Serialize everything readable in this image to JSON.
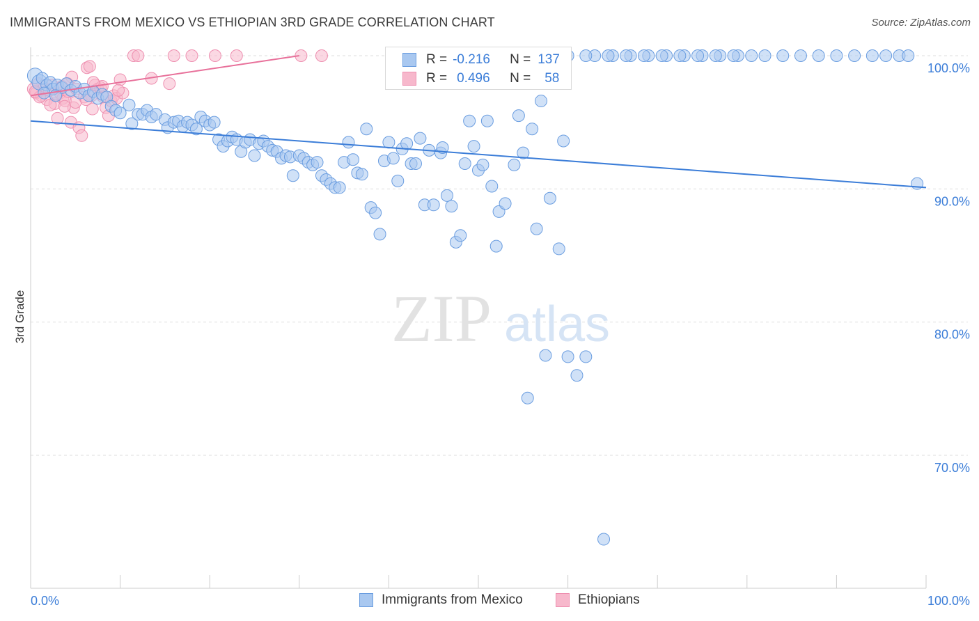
{
  "title": "IMMIGRANTS FROM MEXICO VS ETHIOPIAN 3RD GRADE CORRELATION CHART",
  "source": "Source: ZipAtlas.com",
  "watermark": {
    "zip": "ZIP",
    "atlas": "atlas"
  },
  "colors": {
    "blue": "#3b7dd8",
    "blue_fill": "#a9c8f0",
    "blue_stroke": "#6a9de0",
    "pink": "#e8709a",
    "pink_fill": "#f7b8cc",
    "pink_stroke": "#ee8fb0",
    "grid": "#dddddd",
    "axis_text": "#3b7dd8"
  },
  "legend_top": {
    "rows": [
      {
        "r_label": "R =",
        "r_value": "-0.216",
        "n_label": "N =",
        "n_value": "137",
        "color": "blue"
      },
      {
        "r_label": "R =",
        "r_value": "0.496",
        "n_label": "N =",
        "n_value": "58",
        "color": "pink"
      }
    ]
  },
  "legend_bottom": [
    {
      "label": "Immigrants from Mexico",
      "color": "blue"
    },
    {
      "label": "Ethiopians",
      "color": "pink"
    }
  ],
  "chart_data": {
    "type": "scatter",
    "title": "IMMIGRANTS FROM MEXICO VS ETHIOPIAN 3RD GRADE CORRELATION CHART",
    "xlabel": "",
    "ylabel": "3rd Grade",
    "xlim": [
      0,
      100
    ],
    "ylim": [
      62,
      100.5
    ],
    "x_tick_labels": [
      "0.0%",
      "100.0%"
    ],
    "y_tick_labels": [
      "100.0%",
      "90.0%",
      "80.0%",
      "70.0%"
    ],
    "y_ticks": [
      100,
      90,
      80,
      70
    ],
    "grid": true,
    "legend_position": "top-center",
    "series": [
      {
        "name": "Immigrants from Mexico",
        "color": "blue",
        "r": -0.216,
        "n": 137,
        "trend": {
          "x": [
            0,
            100
          ],
          "y": [
            95.1,
            90.1
          ]
        },
        "points": [
          [
            0.5,
            98.5
          ],
          [
            1.0,
            98.0
          ],
          [
            1.3,
            98.3
          ],
          [
            1.8,
            97.8
          ],
          [
            2.2,
            98.0
          ],
          [
            2.5,
            97.5
          ],
          [
            3.0,
            97.8
          ],
          [
            3.5,
            97.6
          ],
          [
            4.0,
            97.9
          ],
          [
            4.5,
            97.4
          ],
          [
            5.0,
            97.7
          ],
          [
            5.5,
            97.2
          ],
          [
            6.0,
            97.5
          ],
          [
            6.5,
            97.0
          ],
          [
            7.0,
            97.3
          ],
          [
            7.5,
            96.8
          ],
          [
            8.0,
            97.1
          ],
          [
            8.5,
            96.9
          ],
          [
            9.0,
            96.2
          ],
          [
            9.5,
            95.9
          ],
          [
            10.0,
            95.7
          ],
          [
            11.0,
            96.3
          ],
          [
            11.3,
            94.9
          ],
          [
            12.0,
            95.6
          ],
          [
            12.5,
            95.6
          ],
          [
            13.0,
            95.9
          ],
          [
            13.5,
            95.4
          ],
          [
            14.0,
            95.6
          ],
          [
            15.0,
            95.2
          ],
          [
            15.3,
            94.6
          ],
          [
            16.0,
            95.0
          ],
          [
            16.5,
            95.1
          ],
          [
            17.0,
            94.7
          ],
          [
            17.5,
            95.0
          ],
          [
            18.0,
            94.8
          ],
          [
            18.5,
            94.5
          ],
          [
            19.0,
            95.4
          ],
          [
            19.5,
            95.1
          ],
          [
            20.0,
            94.8
          ],
          [
            20.5,
            95.0
          ],
          [
            21.0,
            93.7
          ],
          [
            21.5,
            93.2
          ],
          [
            22.0,
            93.6
          ],
          [
            22.5,
            93.9
          ],
          [
            23.0,
            93.7
          ],
          [
            23.5,
            92.8
          ],
          [
            24.0,
            93.5
          ],
          [
            24.5,
            93.7
          ],
          [
            25.0,
            92.5
          ],
          [
            25.5,
            93.4
          ],
          [
            26.0,
            93.6
          ],
          [
            26.5,
            93.2
          ],
          [
            27.0,
            92.9
          ],
          [
            27.5,
            92.8
          ],
          [
            28.0,
            92.3
          ],
          [
            28.5,
            92.5
          ],
          [
            29.0,
            92.4
          ],
          [
            29.3,
            91.0
          ],
          [
            30.0,
            92.5
          ],
          [
            30.5,
            92.3
          ],
          [
            31.0,
            92.0
          ],
          [
            31.5,
            91.8
          ],
          [
            32.0,
            92.0
          ],
          [
            32.5,
            91.0
          ],
          [
            33.0,
            90.7
          ],
          [
            33.5,
            90.4
          ],
          [
            34.0,
            90.1
          ],
          [
            34.5,
            90.1
          ],
          [
            35.0,
            92.0
          ],
          [
            35.5,
            93.5
          ],
          [
            36.0,
            92.2
          ],
          [
            36.5,
            91.2
          ],
          [
            37.0,
            91.1
          ],
          [
            37.5,
            94.5
          ],
          [
            38.0,
            88.6
          ],
          [
            38.5,
            88.2
          ],
          [
            39.0,
            86.6
          ],
          [
            39.5,
            92.1
          ],
          [
            40.0,
            93.5
          ],
          [
            40.5,
            92.3
          ],
          [
            41.0,
            90.6
          ],
          [
            41.5,
            93.0
          ],
          [
            42.0,
            93.4
          ],
          [
            42.5,
            91.9
          ],
          [
            43.0,
            91.9
          ],
          [
            43.5,
            93.8
          ],
          [
            44.0,
            88.8
          ],
          [
            44.5,
            92.9
          ],
          [
            45.0,
            88.8
          ],
          [
            45.8,
            92.7
          ],
          [
            46.0,
            93.1
          ],
          [
            46.5,
            89.5
          ],
          [
            47.0,
            88.7
          ],
          [
            47.5,
            86.0
          ],
          [
            48.0,
            86.5
          ],
          [
            48.5,
            91.9
          ],
          [
            49.0,
            95.1
          ],
          [
            49.5,
            93.2
          ],
          [
            50.0,
            91.4
          ],
          [
            50.5,
            91.8
          ],
          [
            51.0,
            95.1
          ],
          [
            51.5,
            90.2
          ],
          [
            52.0,
            85.7
          ],
          [
            52.3,
            88.3
          ],
          [
            53.0,
            88.9
          ],
          [
            54.0,
            91.8
          ],
          [
            54.5,
            95.5
          ],
          [
            55.0,
            92.7
          ],
          [
            56.0,
            94.5
          ],
          [
            56.5,
            87.0
          ],
          [
            57.0,
            96.6
          ],
          [
            58.0,
            89.3
          ],
          [
            59.0,
            85.5
          ],
          [
            59.5,
            93.6
          ],
          [
            60.0,
            77.4
          ],
          [
            61.0,
            76.0
          ],
          [
            62.0,
            77.4
          ],
          [
            57.5,
            77.5
          ],
          [
            55.5,
            74.3
          ],
          [
            64.0,
            63.7
          ],
          [
            63.0,
            100.0
          ],
          [
            65.0,
            100.0
          ],
          [
            67.0,
            100.0
          ],
          [
            69.0,
            100.0
          ],
          [
            71.0,
            100.0
          ],
          [
            73.0,
            100.0
          ],
          [
            75.0,
            100.0
          ],
          [
            77.0,
            100.0
          ],
          [
            79.0,
            100.0
          ],
          [
            82.0,
            100.0
          ],
          [
            86.0,
            100.0
          ],
          [
            90.0,
            100.0
          ],
          [
            94.0,
            100.0
          ],
          [
            97.0,
            100.0
          ],
          [
            99.0,
            90.4
          ],
          [
            52.0,
            100.0
          ],
          [
            54.0,
            100.0
          ],
          [
            56.0,
            100.0
          ],
          [
            58.0,
            100.0
          ],
          [
            60.0,
            100.0
          ],
          [
            62.0,
            100.0
          ],
          [
            64.5,
            100.0
          ],
          [
            66.5,
            100.0
          ],
          [
            68.5,
            100.0
          ],
          [
            70.5,
            100.0
          ],
          [
            72.5,
            100.0
          ],
          [
            74.5,
            100.0
          ],
          [
            76.5,
            100.0
          ],
          [
            78.5,
            100.0
          ],
          [
            80.5,
            100.0
          ],
          [
            84.0,
            100.0
          ],
          [
            88.0,
            100.0
          ],
          [
            92.0,
            100.0
          ],
          [
            95.5,
            100.0
          ],
          [
            98.0,
            100.0
          ],
          [
            1.5,
            97.2
          ],
          [
            2.8,
            97.0
          ]
        ]
      },
      {
        "name": "Ethiopians",
        "color": "pink",
        "r": 0.496,
        "n": 58,
        "trend": {
          "x": [
            0,
            30
          ],
          "y": [
            97.0,
            100.0
          ]
        },
        "points": [
          [
            0.3,
            97.5
          ],
          [
            0.6,
            97.2
          ],
          [
            0.9,
            97.9
          ],
          [
            1.2,
            97.0
          ],
          [
            1.5,
            97.6
          ],
          [
            1.8,
            96.7
          ],
          [
            2.1,
            97.4
          ],
          [
            2.4,
            97.8
          ],
          [
            2.7,
            96.4
          ],
          [
            3.0,
            95.3
          ],
          [
            3.3,
            97.2
          ],
          [
            3.6,
            96.8
          ],
          [
            3.9,
            96.6
          ],
          [
            4.2,
            97.3
          ],
          [
            4.5,
            95.0
          ],
          [
            4.8,
            96.1
          ],
          [
            5.1,
            97.5
          ],
          [
            5.4,
            94.6
          ],
          [
            5.7,
            94.0
          ],
          [
            6.0,
            96.9
          ],
          [
            6.3,
            99.1
          ],
          [
            6.6,
            99.2
          ],
          [
            6.9,
            96.0
          ],
          [
            7.2,
            97.8
          ],
          [
            7.5,
            97.5
          ],
          [
            7.8,
            97.6
          ],
          [
            8.1,
            96.9
          ],
          [
            8.4,
            96.1
          ],
          [
            8.7,
            95.5
          ],
          [
            9.0,
            96.6
          ],
          [
            9.3,
            97.0
          ],
          [
            9.6,
            96.8
          ],
          [
            10.0,
            98.2
          ],
          [
            10.3,
            97.2
          ],
          [
            11.5,
            100.0
          ],
          [
            12.0,
            100.0
          ],
          [
            16.0,
            100.0
          ],
          [
            18.0,
            100.0
          ],
          [
            20.6,
            100.0
          ],
          [
            23.0,
            100.0
          ],
          [
            30.2,
            100.0
          ],
          [
            32.5,
            100.0
          ],
          [
            13.5,
            98.3
          ],
          [
            15.5,
            97.9
          ],
          [
            4.6,
            98.4
          ],
          [
            3.5,
            97.7
          ],
          [
            2.2,
            96.3
          ],
          [
            1.0,
            96.9
          ],
          [
            0.5,
            97.3
          ],
          [
            6.8,
            97.0
          ],
          [
            8.0,
            97.7
          ],
          [
            9.8,
            97.4
          ],
          [
            5.0,
            96.5
          ],
          [
            7.0,
            98.0
          ],
          [
            2.9,
            97.1
          ],
          [
            3.8,
            96.2
          ],
          [
            4.1,
            97.9
          ],
          [
            6.2,
            96.7
          ]
        ]
      }
    ]
  }
}
